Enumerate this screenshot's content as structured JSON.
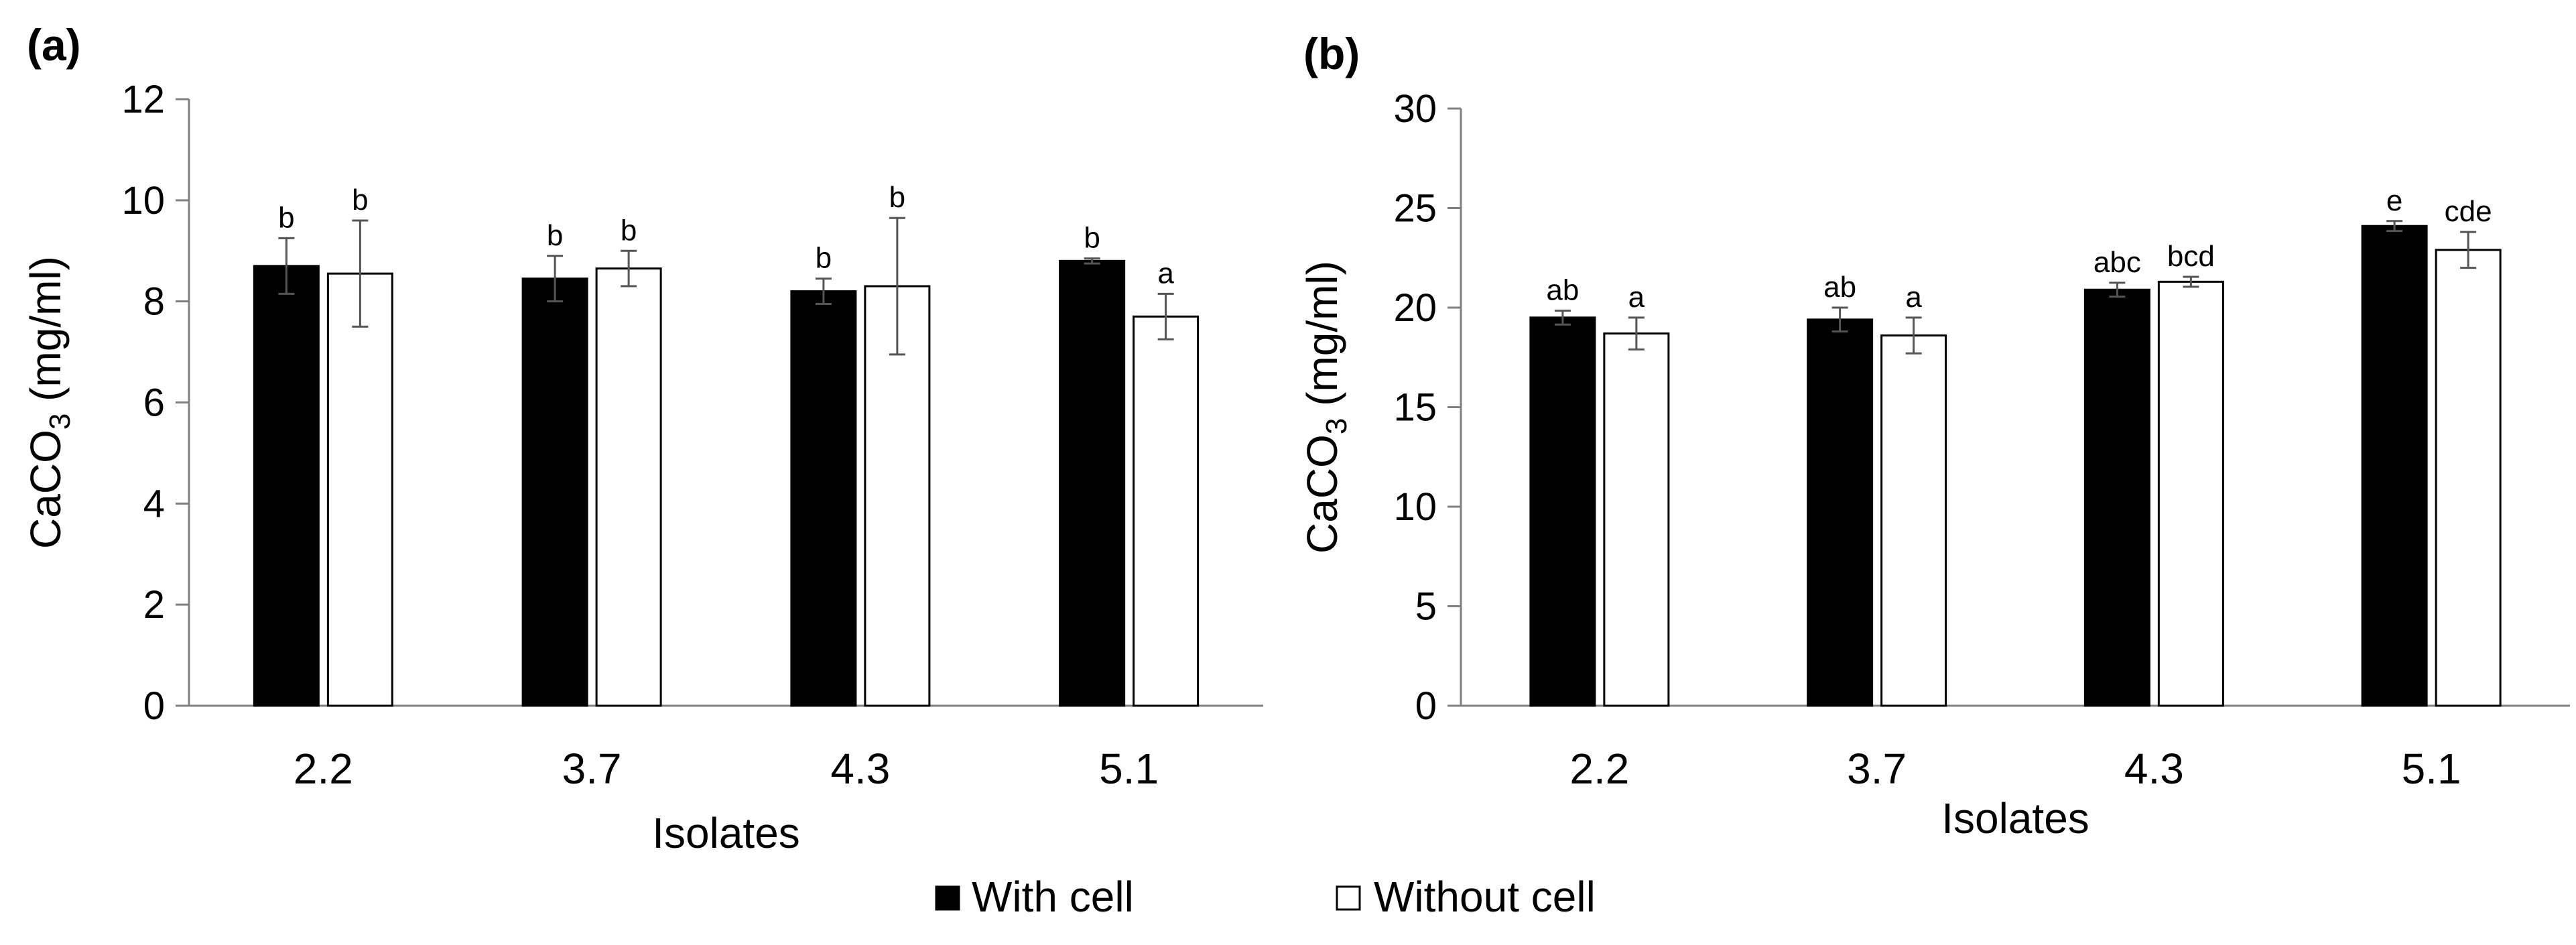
{
  "legend": {
    "with_cell": "With cell",
    "without_cell": "Without cell",
    "with_cell_color": "#000000",
    "without_cell_color": "#ffffff"
  },
  "chart_data": [
    {
      "type": "bar",
      "panel": "(a)",
      "categories": [
        "2.2",
        "3.7",
        "4.3",
        "5.1"
      ],
      "xlabel": "Isolates",
      "ylabel": "CaCO",
      "ylabel_sub": "3",
      "ylabel_unit": " (mg/ml)",
      "ylim": [
        0,
        12
      ],
      "yticks": [
        0,
        2,
        4,
        6,
        8,
        10,
        12
      ],
      "series": [
        {
          "name": "With cell",
          "values": [
            8.7,
            8.45,
            8.2,
            8.8
          ],
          "errors": [
            0.55,
            0.45,
            0.25,
            0.05
          ],
          "labels": [
            "b",
            "b",
            "b",
            "b"
          ]
        },
        {
          "name": "Without cell",
          "values": [
            8.55,
            8.65,
            8.3,
            7.7
          ],
          "errors": [
            1.05,
            0.35,
            1.35,
            0.45
          ],
          "labels": [
            "b",
            "b",
            "b",
            "a"
          ]
        }
      ]
    },
    {
      "type": "bar",
      "panel": "(b)",
      "categories": [
        "2.2",
        "3.7",
        "4.3",
        "5.1"
      ],
      "xlabel": "Isolates",
      "ylabel": "CaCO",
      "ylabel_sub": "3",
      "ylabel_unit": " (mg/ml)",
      "ylim": [
        0,
        30
      ],
      "yticks": [
        0,
        5,
        10,
        15,
        20,
        25,
        30
      ],
      "series": [
        {
          "name": "With cell",
          "values": [
            19.5,
            19.4,
            20.9,
            24.1
          ],
          "errors": [
            0.35,
            0.6,
            0.35,
            0.25
          ],
          "labels": [
            "ab",
            "ab",
            "abc",
            "e"
          ]
        },
        {
          "name": "Without cell",
          "values": [
            18.7,
            18.6,
            21.3,
            22.9
          ],
          "errors": [
            0.8,
            0.9,
            0.25,
            0.9
          ],
          "labels": [
            "a",
            "a",
            "bcd",
            "cde"
          ]
        }
      ]
    }
  ]
}
